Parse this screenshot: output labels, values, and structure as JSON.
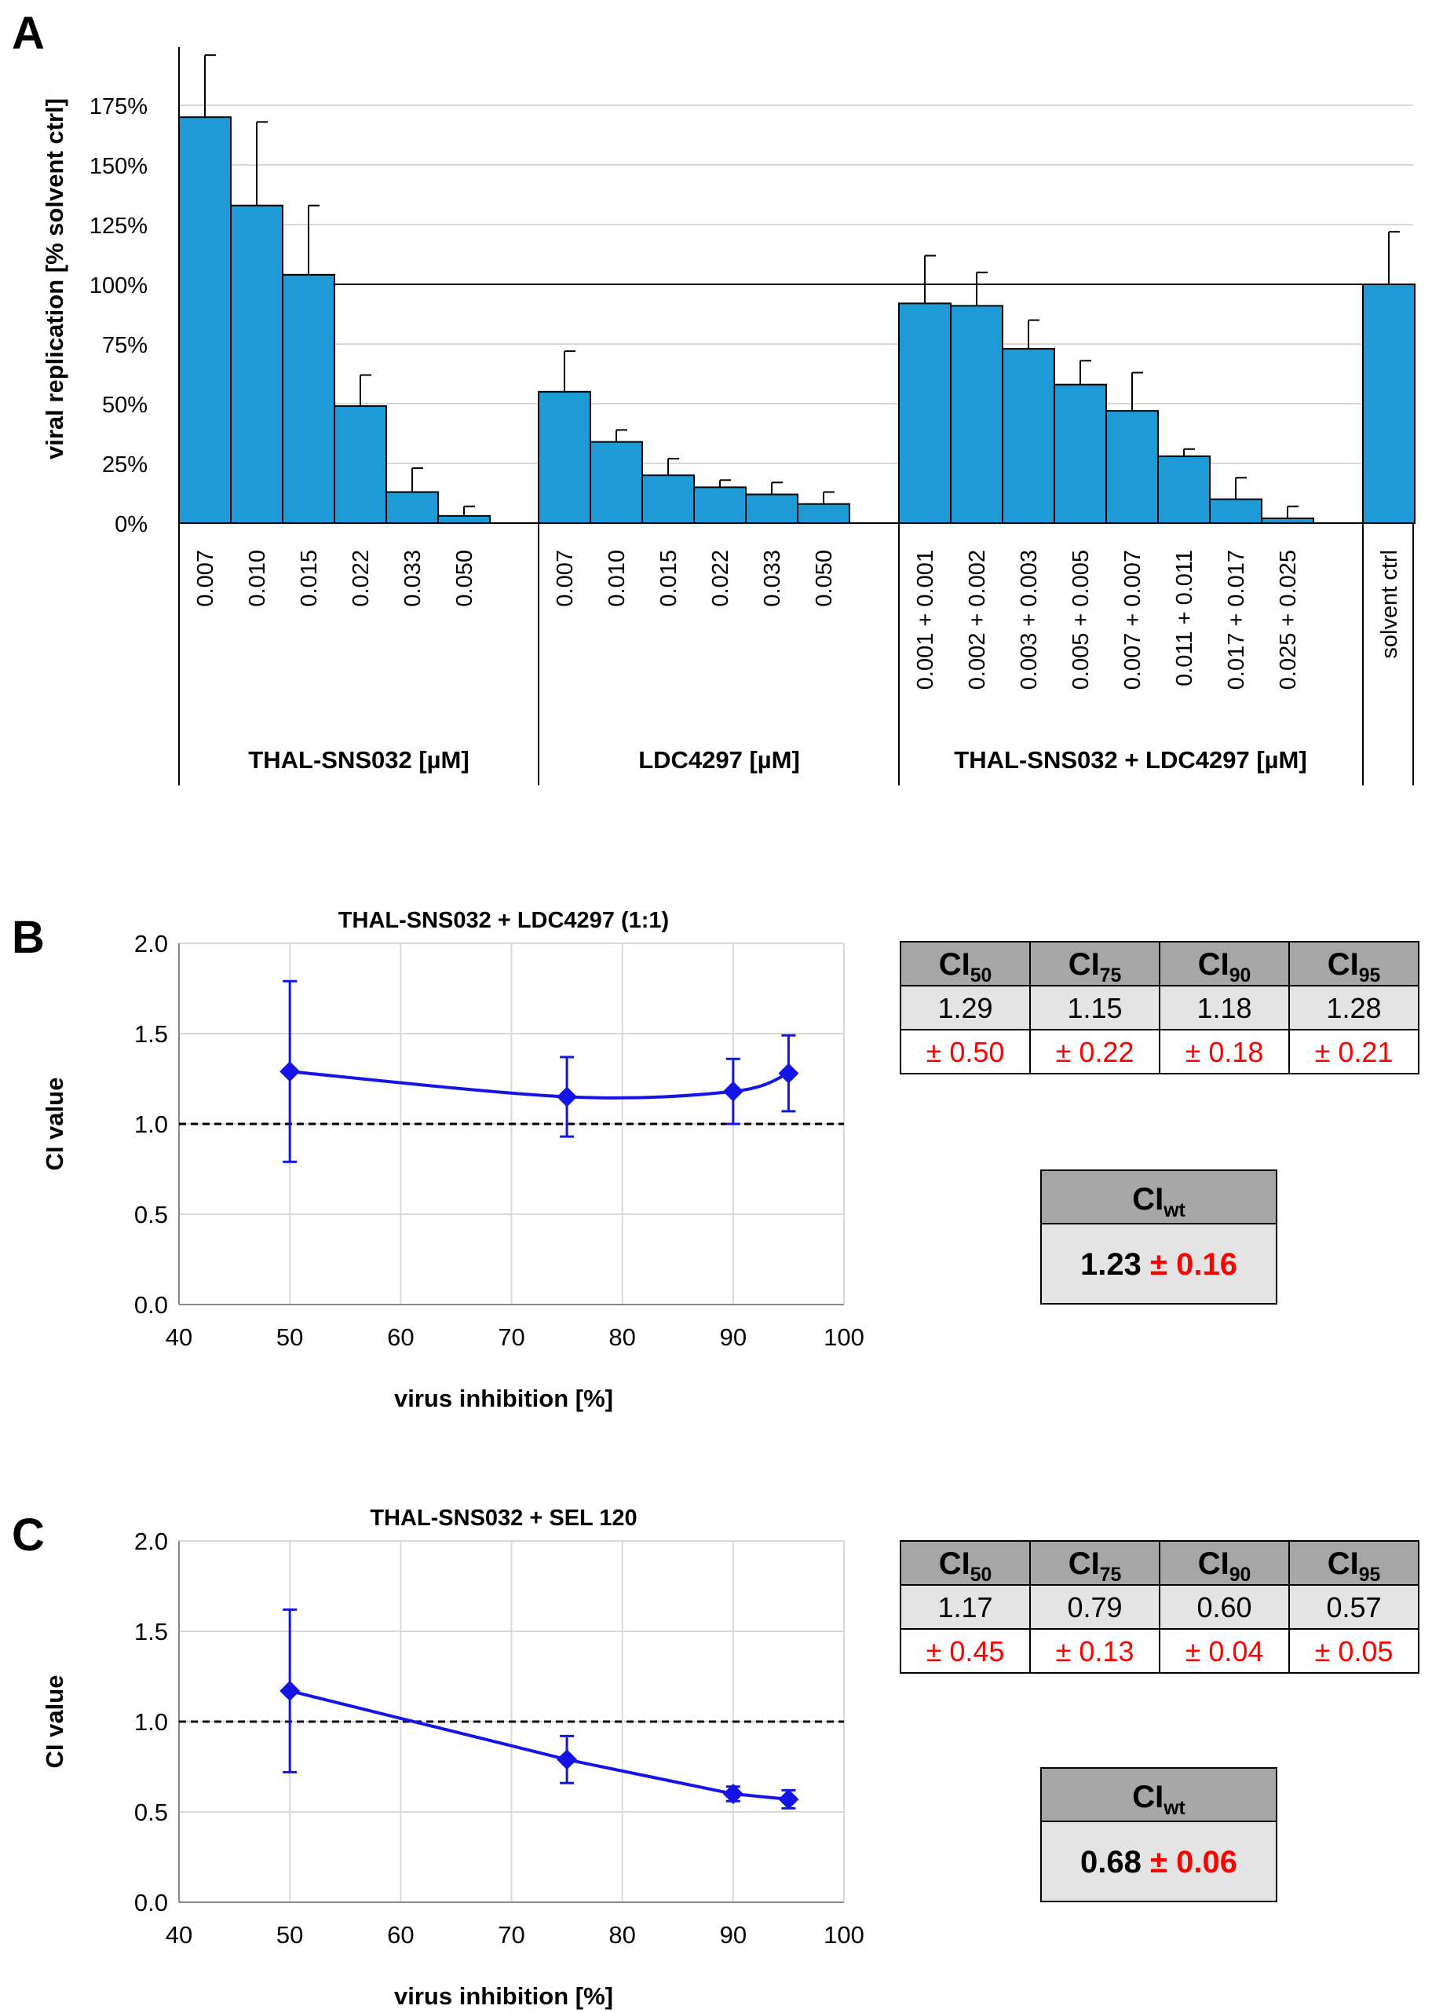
{
  "panel_labels": [
    "A",
    "B",
    "C"
  ],
  "colors": {
    "bar_fill": "#1e9bd7",
    "line": "#1414e6",
    "red": "#ff0000",
    "header_gray": "#a6a6a6",
    "cell_gray": "#e4e4e4",
    "grid": "#d9d9d9"
  },
  "chart_data": [
    {
      "id": "A",
      "type": "bar",
      "title": "",
      "ylabel": "viral replication [% solvent ctrl]",
      "ylim": [
        0,
        200
      ],
      "yticks": [
        0,
        25,
        50,
        75,
        100,
        125,
        150,
        175
      ],
      "ytick_labels": [
        "0%",
        "25%",
        "50%",
        "75%",
        "100%",
        "125%",
        "150%",
        "175%"
      ],
      "reference_line": 100,
      "groups": [
        {
          "label": "THAL-SNS032 [µM]",
          "categories": [
            "0.007",
            "0.010",
            "0.015",
            "0.022",
            "0.033",
            "0.050"
          ],
          "values": [
            170,
            133,
            104,
            49,
            13,
            3
          ],
          "errors": [
            26,
            35,
            29,
            13,
            10,
            4
          ]
        },
        {
          "label": "LDC4297 [µM]",
          "categories": [
            "0.007",
            "0.010",
            "0.015",
            "0.022",
            "0.033",
            "0.050"
          ],
          "values": [
            55,
            34,
            20,
            15,
            12,
            8
          ],
          "errors": [
            17,
            5,
            7,
            3,
            5,
            5
          ]
        },
        {
          "label": "THAL-SNS032 + LDC4297 [µM]",
          "categories": [
            "0.001 + 0.001",
            "0.002 + 0.002",
            "0.003 + 0.003",
            "0.005 + 0.005",
            "0.007 + 0.007",
            "0.011 + 0.011",
            "0.017 + 0.017",
            "0.025 + 0.025"
          ],
          "values": [
            92,
            91,
            73,
            58,
            47,
            28,
            10,
            2
          ],
          "errors": [
            20,
            14,
            12,
            10,
            16,
            3,
            9,
            5
          ]
        },
        {
          "label": "",
          "categories": [
            "solvent ctrl"
          ],
          "values": [
            100
          ],
          "errors": [
            22
          ]
        }
      ]
    },
    {
      "id": "B",
      "type": "line",
      "title": "THAL-SNS032 + LDC4297 (1:1)",
      "xlabel": "virus inhibition [%]",
      "ylabel": "CI value",
      "xlim": [
        40,
        100
      ],
      "ylim": [
        0,
        2
      ],
      "xticks": [
        40,
        50,
        60,
        70,
        80,
        90,
        100
      ],
      "yticks": [
        "0.0",
        "0.5",
        "1.0",
        "1.5",
        "2.0"
      ],
      "reference_line": 1.0,
      "x": [
        50,
        75,
        90,
        95
      ],
      "y": [
        1.29,
        1.15,
        1.18,
        1.28
      ],
      "errors": [
        0.5,
        0.22,
        0.18,
        0.21
      ]
    },
    {
      "id": "C",
      "type": "line",
      "title": "THAL-SNS032 + SEL 120",
      "xlabel": "virus inhibition [%]",
      "ylabel": "CI value",
      "xlim": [
        40,
        100
      ],
      "ylim": [
        0,
        2
      ],
      "xticks": [
        40,
        50,
        60,
        70,
        80,
        90,
        100
      ],
      "yticks": [
        "0.0",
        "0.5",
        "1.0",
        "1.5",
        "2.0"
      ],
      "reference_line": 1.0,
      "x": [
        50,
        75,
        90,
        95
      ],
      "y": [
        1.17,
        0.79,
        0.6,
        0.57
      ],
      "errors": [
        0.45,
        0.13,
        0.04,
        0.05
      ]
    }
  ],
  "tables": {
    "B": {
      "headers": [
        {
          "base": "CI",
          "sub": "50"
        },
        {
          "base": "CI",
          "sub": "75"
        },
        {
          "base": "CI",
          "sub": "90"
        },
        {
          "base": "CI",
          "sub": "95"
        }
      ],
      "values": [
        "1.29",
        "1.15",
        "1.18",
        "1.28"
      ],
      "errors": [
        "± 0.50",
        "± 0.22",
        "± 0.18",
        "± 0.21"
      ],
      "wt_header": {
        "base": "CI",
        "sub": "wt"
      },
      "wt_value": "1.23",
      "wt_error": "± 0.16"
    },
    "C": {
      "headers": [
        {
          "base": "CI",
          "sub": "50"
        },
        {
          "base": "CI",
          "sub": "75"
        },
        {
          "base": "CI",
          "sub": "90"
        },
        {
          "base": "CI",
          "sub": "95"
        }
      ],
      "values": [
        "1.17",
        "0.79",
        "0.60",
        "0.57"
      ],
      "errors": [
        "± 0.45",
        "± 0.13",
        "± 0.04",
        "± 0.05"
      ],
      "wt_header": {
        "base": "CI",
        "sub": "wt"
      },
      "wt_value": "0.68",
      "wt_error": "± 0.06"
    }
  }
}
